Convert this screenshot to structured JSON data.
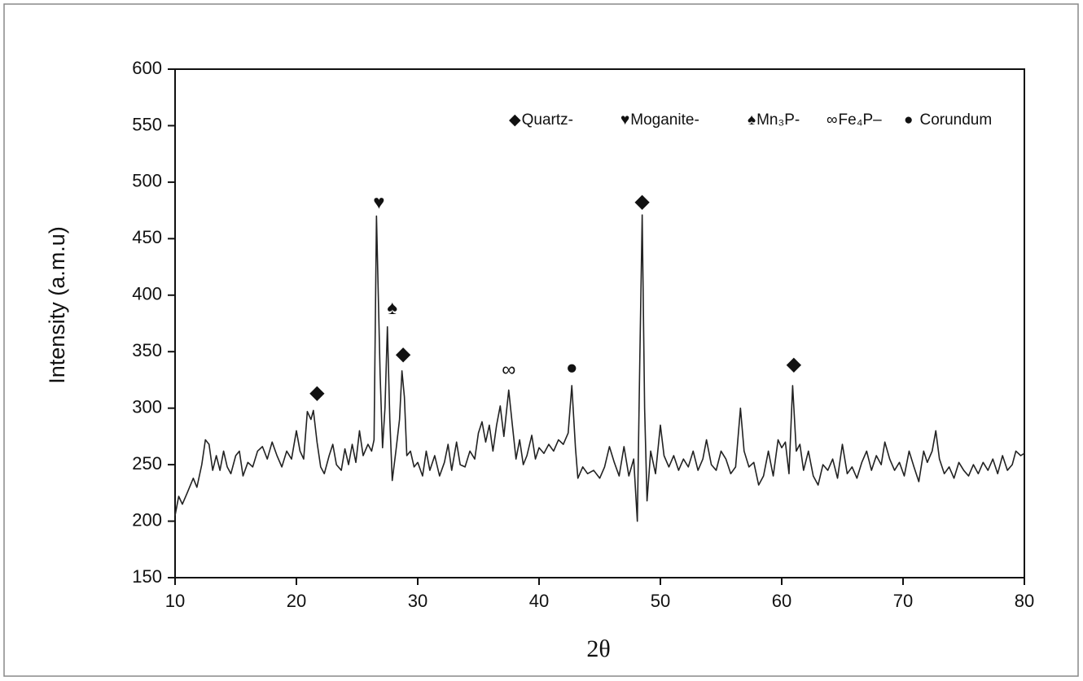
{
  "chart_data": {
    "type": "line",
    "xlabel": "2θ",
    "ylabel": "Intensity (a.m.u)",
    "xlim": [
      10,
      80
    ],
    "xticks": [
      10,
      20,
      30,
      40,
      50,
      60,
      70,
      80
    ],
    "ylim": [
      150,
      600
    ],
    "yticks": [
      150,
      200,
      250,
      300,
      350,
      400,
      450,
      500,
      550,
      600
    ],
    "legend": [
      {
        "symbol": "◆",
        "label": "Quartz-"
      },
      {
        "symbol": "♥",
        "label": "Moganite-"
      },
      {
        "symbol": "♠",
        "label": "Mn₃P-"
      },
      {
        "symbol": "∞",
        "label": "Fe₄P–"
      },
      {
        "symbol": "●",
        "label": "Corundum"
      }
    ],
    "annotations": [
      {
        "text": "◆",
        "x": 21.7,
        "y": 313
      },
      {
        "text": "♥",
        "x": 26.8,
        "y": 481
      },
      {
        "text": "♠",
        "x": 27.9,
        "y": 388
      },
      {
        "text": "◆",
        "x": 28.8,
        "y": 347
      },
      {
        "text": "∞",
        "x": 37.5,
        "y": 333
      },
      {
        "text": "●",
        "x": 42.7,
        "y": 335
      },
      {
        "text": "◆",
        "x": 48.5,
        "y": 482
      },
      {
        "text": "◆",
        "x": 61,
        "y": 338
      }
    ],
    "x": [
      10,
      10.3,
      10.6,
      11,
      11.5,
      11.8,
      12.2,
      12.5,
      12.8,
      13.1,
      13.4,
      13.7,
      14,
      14.3,
      14.6,
      15,
      15.3,
      15.6,
      16,
      16.4,
      16.8,
      17.2,
      17.6,
      18,
      18.4,
      18.8,
      19.2,
      19.6,
      20,
      20.3,
      20.6,
      20.9,
      21.2,
      21.4,
      21.7,
      22,
      22.3,
      22.7,
      23,
      23.3,
      23.7,
      24,
      24.3,
      24.6,
      24.9,
      25.2,
      25.5,
      25.9,
      26.2,
      26.4,
      26.6,
      26.9,
      27.1,
      27.3,
      27.5,
      27.7,
      27.9,
      28.2,
      28.5,
      28.7,
      28.9,
      29.1,
      29.4,
      29.7,
      30,
      30.4,
      30.7,
      31,
      31.4,
      31.8,
      32.2,
      32.5,
      32.8,
      33.2,
      33.5,
      33.9,
      34.3,
      34.7,
      35,
      35.3,
      35.6,
      35.9,
      36.2,
      36.5,
      36.8,
      37.1,
      37.5,
      37.8,
      38.1,
      38.4,
      38.7,
      39,
      39.4,
      39.7,
      40,
      40.4,
      40.8,
      41.2,
      41.6,
      42,
      42.4,
      42.7,
      43,
      43.2,
      43.6,
      44,
      44.5,
      45,
      45.4,
      45.8,
      46.2,
      46.6,
      47,
      47.4,
      47.8,
      48.1,
      48.3,
      48.5,
      48.7,
      48.9,
      49.2,
      49.6,
      50,
      50.3,
      50.7,
      51.1,
      51.5,
      51.9,
      52.3,
      52.7,
      53.1,
      53.5,
      53.8,
      54.2,
      54.6,
      55,
      55.4,
      55.8,
      56.2,
      56.6,
      56.9,
      57.3,
      57.7,
      58.1,
      58.5,
      58.9,
      59.3,
      59.7,
      60,
      60.3,
      60.6,
      60.9,
      61.2,
      61.5,
      61.8,
      62.2,
      62.6,
      63,
      63.4,
      63.8,
      64.2,
      64.6,
      65,
      65.4,
      65.8,
      66.2,
      66.6,
      67,
      67.4,
      67.8,
      68.2,
      68.5,
      68.9,
      69.3,
      69.7,
      70.1,
      70.5,
      70.9,
      71.3,
      71.7,
      72,
      72.4,
      72.7,
      73,
      73.4,
      73.8,
      74.2,
      74.6,
      75,
      75.4,
      75.8,
      76.2,
      76.6,
      77,
      77.4,
      77.8,
      78.2,
      78.6,
      79,
      79.3,
      79.7,
      80
    ],
    "series": [
      {
        "color": "#222222",
        "values": [
          205,
          222,
          215,
          225,
          238,
          230,
          250,
          272,
          268,
          245,
          258,
          245,
          262,
          248,
          242,
          258,
          262,
          240,
          252,
          248,
          262,
          266,
          255,
          270,
          258,
          248,
          262,
          255,
          280,
          262,
          255,
          297,
          290,
          298,
          270,
          248,
          242,
          258,
          268,
          250,
          245,
          264,
          250,
          268,
          252,
          280,
          258,
          268,
          262,
          272,
          470,
          330,
          265,
          300,
          372,
          290,
          236,
          262,
          290,
          333,
          310,
          258,
          262,
          248,
          252,
          240,
          262,
          245,
          258,
          240,
          252,
          268,
          245,
          270,
          250,
          248,
          262,
          255,
          278,
          288,
          270,
          285,
          262,
          285,
          302,
          275,
          316,
          285,
          255,
          272,
          250,
          258,
          276,
          255,
          265,
          260,
          268,
          262,
          272,
          268,
          278,
          320,
          265,
          238,
          248,
          242,
          245,
          238,
          248,
          266,
          252,
          240,
          266,
          240,
          255,
          200,
          340,
          471,
          300,
          218,
          262,
          242,
          285,
          258,
          248,
          258,
          245,
          255,
          248,
          262,
          245,
          255,
          272,
          250,
          245,
          262,
          255,
          242,
          248,
          300,
          262,
          248,
          252,
          232,
          240,
          262,
          240,
          272,
          265,
          270,
          242,
          320,
          262,
          268,
          245,
          262,
          240,
          232,
          250,
          245,
          255,
          238,
          268,
          242,
          248,
          238,
          252,
          262,
          245,
          258,
          250,
          270,
          255,
          245,
          252,
          240,
          262,
          248,
          235,
          262,
          252,
          262,
          280,
          255,
          242,
          248,
          238,
          252,
          245,
          240,
          250,
          242,
          252,
          245,
          255,
          242,
          258,
          245,
          250,
          262,
          258,
          260
        ]
      }
    ]
  }
}
